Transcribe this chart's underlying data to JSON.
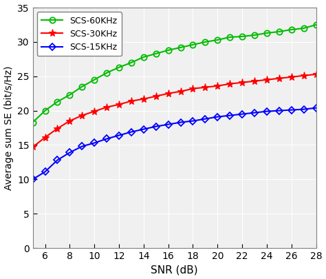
{
  "snr": [
    5,
    6,
    7,
    8,
    9,
    10,
    11,
    12,
    13,
    14,
    15,
    16,
    17,
    18,
    19,
    20,
    21,
    22,
    23,
    24,
    25,
    26,
    27,
    28
  ],
  "scs_60": [
    18.3,
    20.0,
    21.3,
    22.3,
    23.5,
    24.5,
    25.5,
    26.3,
    27.0,
    27.8,
    28.3,
    28.8,
    29.2,
    29.6,
    30.0,
    30.3,
    30.7,
    30.8,
    31.0,
    31.3,
    31.5,
    31.8,
    32.0,
    32.5
  ],
  "scs_30": [
    14.7,
    16.1,
    17.4,
    18.5,
    19.3,
    19.9,
    20.5,
    20.9,
    21.4,
    21.7,
    22.1,
    22.5,
    22.8,
    23.2,
    23.4,
    23.6,
    23.9,
    24.1,
    24.3,
    24.5,
    24.7,
    24.9,
    25.1,
    25.3
  ],
  "scs_15": [
    10.0,
    11.1,
    12.8,
    13.9,
    14.8,
    15.3,
    15.9,
    16.4,
    16.9,
    17.3,
    17.7,
    18.0,
    18.3,
    18.5,
    18.8,
    19.1,
    19.3,
    19.5,
    19.7,
    19.9,
    20.0,
    20.1,
    20.2,
    20.4
  ],
  "color_60": "#00bb00",
  "color_30": "#ff0000",
  "color_15": "#0000ff",
  "xlabel": "SNR (dB)",
  "ylabel": "Average sum SE (bit/s/Hz)",
  "legend_60": "SCS-60KHz",
  "legend_30": "SCS-30KHz",
  "legend_15": "SCS-15KHz",
  "xlim": [
    5,
    28
  ],
  "ylim": [
    0,
    35
  ],
  "yticks": [
    0,
    5,
    10,
    15,
    20,
    25,
    30,
    35
  ],
  "xticks": [
    6,
    8,
    10,
    12,
    14,
    16,
    18,
    20,
    22,
    24,
    26,
    28
  ],
  "axes_facecolor": "#f0f0f0",
  "figure_facecolor": "#ffffff",
  "grid_color": "#ffffff"
}
